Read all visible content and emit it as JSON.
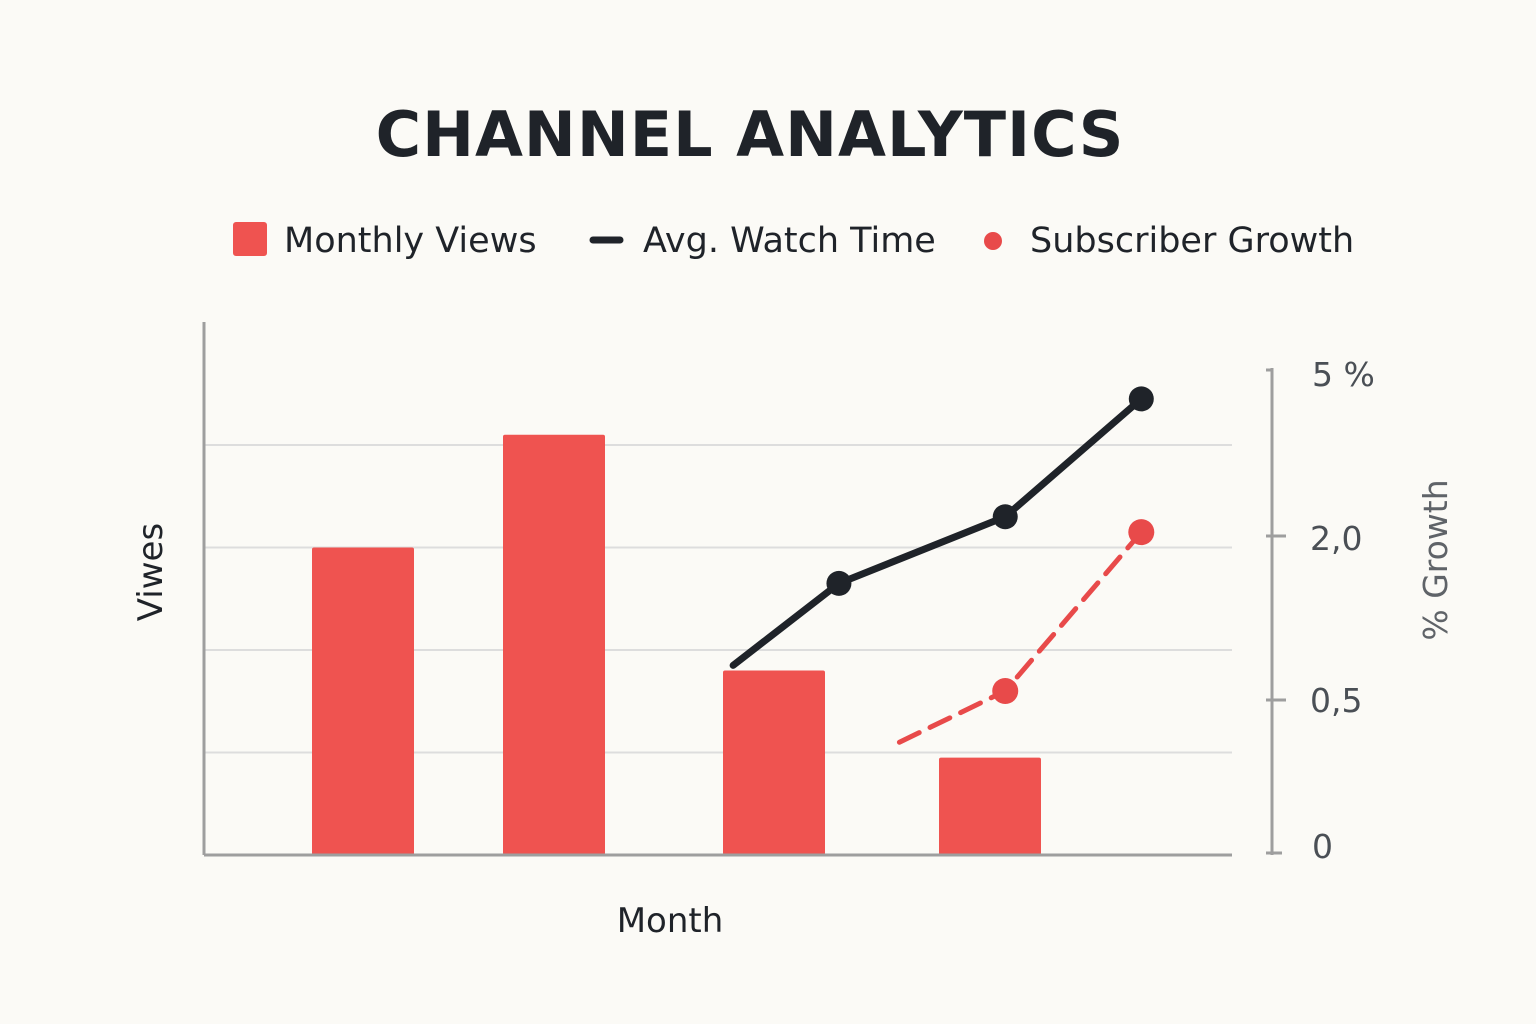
{
  "chart_data": {
    "type": "bar",
    "title": "CHANNEL ANALYTICS",
    "xlabel": "Month",
    "ylabel": "Viwes",
    "y2label": "% Growth",
    "legend_position": "top",
    "grid": true,
    "colors": {
      "bars": "#ef5350",
      "watch_time": "#1f2329",
      "subscriber": "#e84a4a",
      "axis": "#9e9e9e",
      "grid": "#dddddd"
    },
    "ylim": [
      0,
      5.2
    ],
    "y2_ticks": [
      "5 %",
      "2,0",
      "0,5",
      "0"
    ],
    "series": [
      {
        "name": "Monthly Views",
        "kind": "bar",
        "x": [
          1,
          2,
          3,
          4
        ],
        "values": [
          3.0,
          4.1,
          1.8,
          0.95
        ]
      },
      {
        "name": "Avg. Watch Time",
        "kind": "line",
        "x": [
          3.5,
          4.2,
          5.3,
          6.2
        ],
        "values": [
          1.85,
          2.65,
          3.3,
          4.45
        ]
      },
      {
        "name": "Subscriber Growth",
        "kind": "dashed-line",
        "x": [
          4.6,
          5.3,
          6.2
        ],
        "values": [
          1.1,
          1.6,
          3.15
        ]
      }
    ],
    "xlim": [
      0,
      6.8
    ]
  }
}
